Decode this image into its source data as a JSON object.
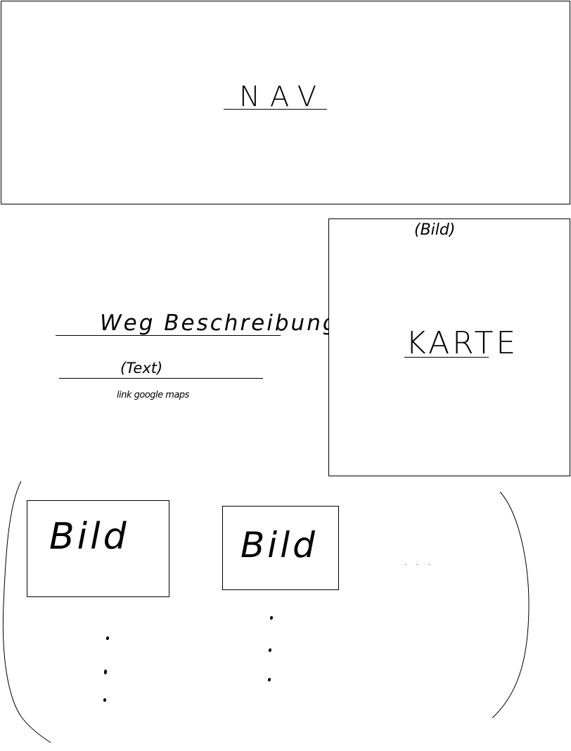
{
  "nav": {
    "label": "NAV"
  },
  "directions": {
    "heading": "Weg Beschreibung",
    "text_placeholder": "(Text)",
    "link": "link google maps"
  },
  "map_panel": {
    "image_label": "(Bild)",
    "map_label": "KARTE"
  },
  "gallery": {
    "items": [
      {
        "label": "Bild"
      },
      {
        "label": "Bild"
      }
    ],
    "more": "..."
  }
}
